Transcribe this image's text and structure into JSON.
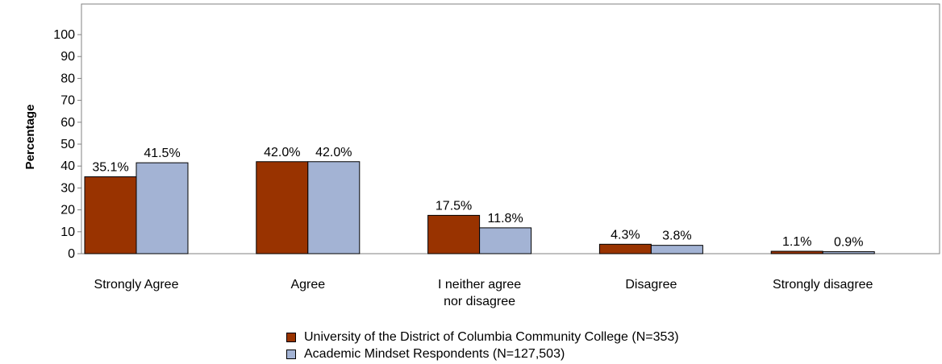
{
  "chart_data": {
    "type": "bar",
    "title": "",
    "xlabel": "",
    "ylabel": "Percentage",
    "ylim": [
      0,
      100
    ],
    "yticks": [
      0,
      10,
      20,
      30,
      40,
      50,
      60,
      70,
      80,
      90,
      100
    ],
    "grid": false,
    "legend_position": "bottom",
    "categories": [
      "Strongly Agree",
      "Agree",
      "I neither agree nor disagree",
      "Disagree",
      "Strongly disagree"
    ],
    "category_labels": [
      [
        "Strongly Agree"
      ],
      [
        "Agree"
      ],
      [
        "I neither agree",
        "nor disagree"
      ],
      [
        "Disagree"
      ],
      [
        "Strongly disagree"
      ]
    ],
    "series": [
      {
        "name": "University of the District of Columbia Community College (N=353)",
        "color": "#993300",
        "values": [
          35.1,
          42.0,
          17.5,
          4.3,
          1.1
        ],
        "labels": [
          "35.1%",
          "42.0%",
          "17.5%",
          "4.3%",
          "1.1%"
        ]
      },
      {
        "name": "Academic Mindset Respondents (N=127,503)",
        "color": "#a3b3d4",
        "values": [
          41.5,
          42.0,
          11.8,
          3.8,
          0.9
        ],
        "labels": [
          "41.5%",
          "42.0%",
          "11.8%",
          "3.8%",
          "0.9%"
        ]
      }
    ]
  }
}
